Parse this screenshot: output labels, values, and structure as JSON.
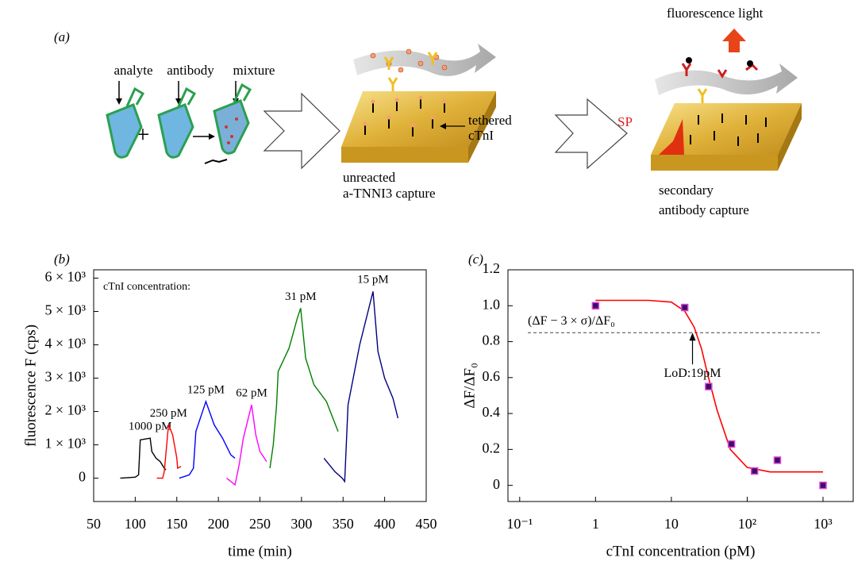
{
  "diagram": {
    "label": "(a)",
    "analyte": "analyte",
    "antibody": "antibody",
    "mixture": "mixture",
    "tethered": [
      "tethered",
      "cTnI"
    ],
    "unreacted": [
      "unreacted",
      "a-TNNI3 capture"
    ],
    "fluorescence": "fluorescence light",
    "sp": "SP",
    "secondary": [
      "secondary",
      "antibody capture"
    ]
  },
  "chart_data": [
    {
      "type": "line",
      "panel_label": "(b)",
      "xlabel": "time (min)",
      "ylabel": "fluorescence F (cps)",
      "note": "cTnI concentration:",
      "xlim": [
        50,
        450
      ],
      "xticks": [
        50,
        100,
        150,
        200,
        250,
        300,
        350,
        400,
        450
      ],
      "ylim": [
        -700,
        6250
      ],
      "yticks": [
        0,
        {
          "value": 1000,
          "label": "1 × 10³"
        },
        {
          "value": 2000,
          "label": "2 × 10³"
        },
        {
          "value": 3000,
          "label": "3 × 10³"
        },
        {
          "value": 4000,
          "label": "4 × 10³"
        },
        {
          "value": 5000,
          "label": "5 × 10³"
        },
        {
          "value": 6000,
          "label": "6 × 10³"
        }
      ],
      "series": [
        {
          "name": "1000 pM",
          "color": "#000000",
          "x": [
            82,
            100,
            104,
            106,
            118,
            120,
            125,
            130,
            135,
            137
          ],
          "values": [
            0,
            30,
            100,
            1150,
            1200,
            800,
            600,
            500,
            300,
            250
          ]
        },
        {
          "name": "250 pM",
          "color": "#ff0000",
          "x": [
            126,
            133,
            135,
            140,
            145,
            150,
            151,
            155
          ],
          "values": [
            0,
            0,
            200,
            1600,
            1300,
            600,
            300,
            350
          ]
        },
        {
          "name": "125 pM",
          "color": "#0000ff",
          "x": [
            153,
            165,
            170,
            173,
            185,
            195,
            205,
            215,
            220
          ],
          "values": [
            0,
            100,
            300,
            1400,
            2300,
            1600,
            1200,
            700,
            600
          ]
        },
        {
          "name": "62 pM",
          "color": "#ff00ff",
          "x": [
            210,
            220,
            225,
            230,
            240,
            245,
            250,
            258
          ],
          "values": [
            0,
            -200,
            400,
            1200,
            2200,
            1300,
            800,
            500
          ]
        },
        {
          "name": "31 pM",
          "color": "#008000",
          "x": [
            262,
            266,
            270,
            272,
            285,
            295,
            299,
            305,
            315,
            330,
            344
          ],
          "values": [
            300,
            1000,
            2200,
            3200,
            3900,
            4800,
            5100,
            3600,
            2800,
            2300,
            1400
          ]
        },
        {
          "name": "15 pM",
          "color": "#000080",
          "x": [
            327,
            340,
            349,
            352,
            356,
            370,
            386,
            392,
            400,
            410,
            416
          ],
          "values": [
            600,
            200,
            0,
            -100,
            2200,
            4000,
            5600,
            3800,
            3000,
            2400,
            1800
          ]
        }
      ]
    },
    {
      "type": "scatter",
      "panel_label": "(c)",
      "xlabel": "cTnI concentration (pM)",
      "ylabel": "ΔF/ΔF₀",
      "xscale": "log",
      "xlim": [
        0.07,
        2500
      ],
      "xticks": [
        {
          "value": 0.1,
          "label": "10⁻¹"
        },
        1,
        10,
        {
          "value": 100,
          "label": "10²"
        },
        {
          "value": 1000,
          "label": "10³"
        }
      ],
      "ylim": [
        -0.09,
        1.2
      ],
      "yticks": [
        0,
        0.2,
        0.4,
        0.6,
        0.8,
        {
          "value": 1,
          "label": "1.0"
        },
        1.2
      ],
      "color": "#3b1060",
      "edgecolor": "#e040e0",
      "x": [
        1,
        15,
        31,
        62,
        125,
        250,
        1000
      ],
      "values": [
        1.0,
        0.99,
        0.55,
        0.23,
        0.08,
        0.14,
        0.0
      ],
      "fit": {
        "color": "#ff0000",
        "x": [
          1,
          5,
          10,
          15,
          20,
          25,
          30,
          40,
          60,
          100,
          200,
          1000
        ],
        "values": [
          1.03,
          1.03,
          1.02,
          0.97,
          0.88,
          0.76,
          0.62,
          0.42,
          0.2,
          0.1,
          0.075,
          0.075
        ]
      },
      "threshold": {
        "value": 0.85,
        "label": "(ΔF − 3 × σ)/ΔF₀"
      },
      "lod": {
        "x": 19,
        "label": "LoD:19pM"
      }
    }
  ]
}
